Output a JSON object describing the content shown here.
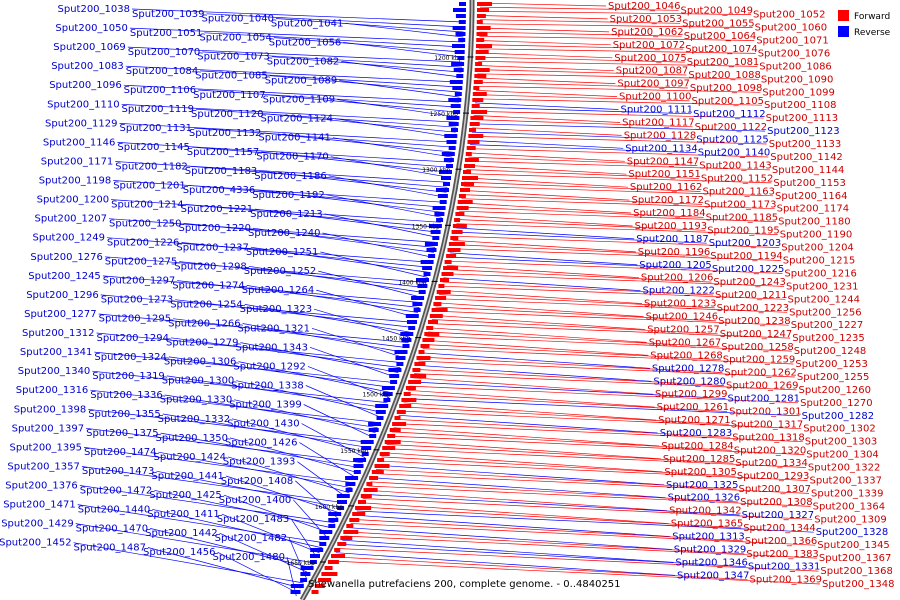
{
  "caption": "Shewanella putrefaciens 200, complete genome. - 0..4840251",
  "legend": [
    {
      "label": "Forward",
      "color": "#ff0000"
    },
    {
      "label": "Reverse",
      "color": "#0000ff"
    }
  ],
  "ticks": [
    "1200 kbp",
    "1250 kbp",
    "1300 kbp",
    "1350 kbp",
    "1400 kbp",
    "1450 kbp",
    "1500 kbp",
    "1550 kbp",
    "1600 kbp",
    "1650 kbp"
  ],
  "colors": {
    "forward": "#ff0000",
    "reverse": "#0000ff",
    "backbone": "#555555"
  },
  "left_labels": [
    "Sput200_1038",
    "Sput200_1039",
    "Sput200_1040",
    "Sput200_1041",
    "Sput200_1050",
    "Sput200_1051",
    "Sput200_1054",
    "Sput200_1056",
    "Sput200_1069",
    "Sput200_1070",
    "Sput200_1073",
    "Sput200_1082",
    "Sput200_1083",
    "Sput200_1084",
    "Sput200_1085",
    "Sput200_1089",
    "Sput200_1096",
    "Sput200_1106",
    "Sput200_1107",
    "Sput200_1109",
    "Sput200_1110",
    "Sput200_1119",
    "Sput200_1120",
    "Sput200_1124",
    "Sput200_1129",
    "Sput200_1131",
    "Sput200_1132",
    "Sput200_1141",
    "Sput200_1146",
    "Sput200_1145",
    "Sput200_1157",
    "Sput200_1170",
    "Sput200_1171",
    "Sput200_1182",
    "Sput200_1183",
    "Sput200_1186",
    "Sput200_1198",
    "Sput200_1201",
    "Sput200_4336",
    "Sput200_1192",
    "Sput200_1200",
    "Sput200_1214",
    "Sput200_1221",
    "Sput200_1213",
    "Sput200_1207",
    "Sput200_1250",
    "Sput200_1220",
    "Sput200_1240",
    "Sput200_1249",
    "Sput200_1226",
    "Sput200_1237",
    "Sput200_1251",
    "Sput200_1276",
    "Sput200_1275",
    "Sput200_1298",
    "Sput200_1252",
    "Sput200_1245",
    "Sput200_1297",
    "Sput200_1274",
    "Sput200_1264",
    "Sput200_1296",
    "Sput200_1273",
    "Sput200_1254",
    "Sput200_1323",
    "Sput200_1277",
    "Sput200_1295",
    "Sput200_1266",
    "Sput200_1321",
    "Sput200_1312",
    "Sput200_1294",
    "Sput200_1279",
    "Sput200_1343",
    "Sput200_1341",
    "Sput200_1324",
    "Sput200_1306",
    "Sput200_1292",
    "Sput200_1340",
    "Sput200_1319",
    "Sput200_1300",
    "Sput200_1338",
    "Sput200_1316",
    "Sput200_1336",
    "Sput200_1330",
    "Sput200_1399",
    "Sput200_1398",
    "Sput200_1355",
    "Sput200_1332",
    "Sput200_1430",
    "Sput200_1397",
    "Sput200_1375",
    "Sput200_1350",
    "Sput200_1426",
    "Sput200_1395",
    "Sput200_1474",
    "Sput200_1424",
    "Sput200_1393",
    "Sput200_1357",
    "Sput200_1473",
    "Sput200_1441",
    "Sput200_1408",
    "Sput200_1376",
    "Sput200_1472",
    "Sput200_1425",
    "Sput200_1400",
    "Sput200_1471",
    "Sput200_1440",
    "Sput200_1411",
    "Sput200_1483",
    "Sput200_1429",
    "Sput200_1470",
    "Sput200_1442",
    "Sput200_1482",
    "Sput200_1452",
    "Sput200_1487",
    "Sput200_1456",
    "Sput200_1480"
  ],
  "right_labels": [
    "Sput200_1046",
    "Sput200_1049",
    "Sput200_1052",
    "Sput200_1053",
    "Sput200_1055",
    "Sput200_1060",
    "Sput200_1062",
    "Sput200_1064",
    "Sput200_1071",
    "Sput200_1072",
    "Sput200_1074",
    "Sput200_1076",
    "Sput200_1075",
    "Sput200_1081",
    "Sput200_1086",
    "Sput200_1087",
    "Sput200_1088",
    "Sput200_1090",
    "Sput200_1097",
    "Sput200_1098",
    "Sput200_1099",
    "Sput200_1100",
    "Sput200_1105",
    "Sput200_1108",
    "Sput200_1111",
    "Sput200_1112",
    "Sput200_1113",
    "Sput200_1117",
    "Sput200_1122",
    "Sput200_1123",
    "Sput200_1128",
    "Sput200_1125",
    "Sput200_1133",
    "Sput200_1134",
    "Sput200_1140",
    "Sput200_1142",
    "Sput200_1147",
    "Sput200_1143",
    "Sput200_1144",
    "Sput200_1151",
    "Sput200_1152",
    "Sput200_1153",
    "Sput200_1162",
    "Sput200_1163",
    "Sput200_1164",
    "Sput200_1172",
    "Sput200_1173",
    "Sput200_1174",
    "Sput200_1184",
    "Sput200_1185",
    "Sput200_1180",
    "Sput200_1193",
    "Sput200_1195",
    "Sput200_1190",
    "Sput200_1187",
    "Sput200_1203",
    "Sput200_1204",
    "Sput200_1196",
    "Sput200_1194",
    "Sput200_1215",
    "Sput200_1205",
    "Sput200_1225",
    "Sput200_1216",
    "Sput200_1206",
    "Sput200_1243",
    "Sput200_1231",
    "Sput200_1222",
    "Sput200_1211",
    "Sput200_1244",
    "Sput200_1233",
    "Sput200_1223",
    "Sput200_1256",
    "Sput200_1246",
    "Sput200_1238",
    "Sput200_1227",
    "Sput200_1257",
    "Sput200_1247",
    "Sput200_1235",
    "Sput200_1267",
    "Sput200_1258",
    "Sput200_1248",
    "Sput200_1268",
    "Sput200_1259",
    "Sput200_1253",
    "Sput200_1278",
    "Sput200_1262",
    "Sput200_1255",
    "Sput200_1280",
    "Sput200_1269",
    "Sput200_1260",
    "Sput200_1299",
    "Sput200_1281",
    "Sput200_1270",
    "Sput200_1261",
    "Sput200_1301",
    "Sput200_1282",
    "Sput200_1271",
    "Sput200_1317",
    "Sput200_1302",
    "Sput200_1283",
    "Sput200_1318",
    "Sput200_1303",
    "Sput200_1284",
    "Sput200_1320",
    "Sput200_1304",
    "Sput200_1285",
    "Sput200_1334",
    "Sput200_1322",
    "Sput200_1305",
    "Sput200_1293",
    "Sput200_1337",
    "Sput200_1325",
    "Sput200_1307",
    "Sput200_1339",
    "Sput200_1326",
    "Sput200_1308",
    "Sput200_1364",
    "Sput200_1342",
    "Sput200_1327",
    "Sput200_1309",
    "Sput200_1365",
    "Sput200_1344",
    "Sput200_1328",
    "Sput200_1313",
    "Sput200_1366",
    "Sput200_1345",
    "Sput200_1329",
    "Sput200_1383",
    "Sput200_1367",
    "Sput200_1346",
    "Sput200_1331",
    "Sput200_1368",
    "Sput200_1347",
    "Sput200_1369",
    "Sput200_1348"
  ]
}
